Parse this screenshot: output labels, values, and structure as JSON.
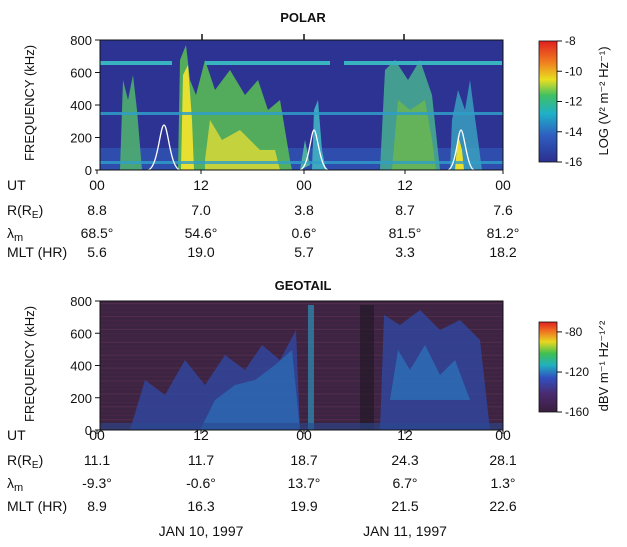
{
  "chart_data": [
    {
      "type": "heatmap",
      "title": "POLAR",
      "ylabel": "FREQUENCY (kHz)",
      "ylim": [
        0,
        800
      ],
      "yticks": [
        "800",
        "600",
        "400",
        "200",
        "0"
      ],
      "xticks": [
        "00",
        "12",
        "00",
        "12",
        "00"
      ],
      "colorbar": {
        "label": "LOG (V² m⁻² Hz⁻¹)",
        "range": [
          -16,
          -8
        ],
        "ticks": [
          "-8",
          "-10",
          "-12",
          "-14",
          "-16"
        ]
      },
      "ephemeris": {
        "rows": [
          {
            "label": "UT",
            "values": [
              "00",
              "12",
              "00",
              "12",
              "00"
            ]
          },
          {
            "label": "R(R_E)",
            "values": [
              "8.8",
              "7.0",
              "3.8",
              "8.7",
              "7.6"
            ]
          },
          {
            "label": "λm",
            "values": [
              "68.5°",
              "54.6°",
              "0.6°",
              "81.5°",
              "81.2°"
            ]
          },
          {
            "label": "MLT (HR)",
            "values": [
              "5.6",
              "19.0",
              "5.7",
              "3.3",
              "18.2"
            ]
          }
        ]
      }
    },
    {
      "type": "heatmap",
      "title": "GEOTAIL",
      "ylabel": "FREQUENCY (kHz)",
      "ylim": [
        0,
        800
      ],
      "yticks": [
        "800",
        "600",
        "400",
        "200",
        "0"
      ],
      "xticks": [
        "00",
        "12",
        "00",
        "12",
        "00"
      ],
      "colorbar": {
        "label": "dBV m⁻¹ Hz⁻¹ᐟ²",
        "range": [
          -160,
          -70
        ],
        "ticks": [
          "-80",
          "-120",
          "-160"
        ]
      },
      "ephemeris": {
        "rows": [
          {
            "label": "UT",
            "values": [
              "00",
              "12",
              "00",
              "12",
              "00"
            ]
          },
          {
            "label": "R(R_E)",
            "values": [
              "11.1",
              "11.7",
              "18.7",
              "24.3",
              "28.1"
            ]
          },
          {
            "label": "λm",
            "values": [
              "-9.3°",
              "-0.6°",
              "13.7°",
              "6.7°",
              "1.3°"
            ]
          },
          {
            "label": "MLT (HR)",
            "values": [
              "8.9",
              "16.3",
              "19.9",
              "21.5",
              "22.6"
            ]
          }
        ]
      }
    }
  ],
  "dates": [
    "JAN 10, 1997",
    "JAN 11, 1997"
  ]
}
